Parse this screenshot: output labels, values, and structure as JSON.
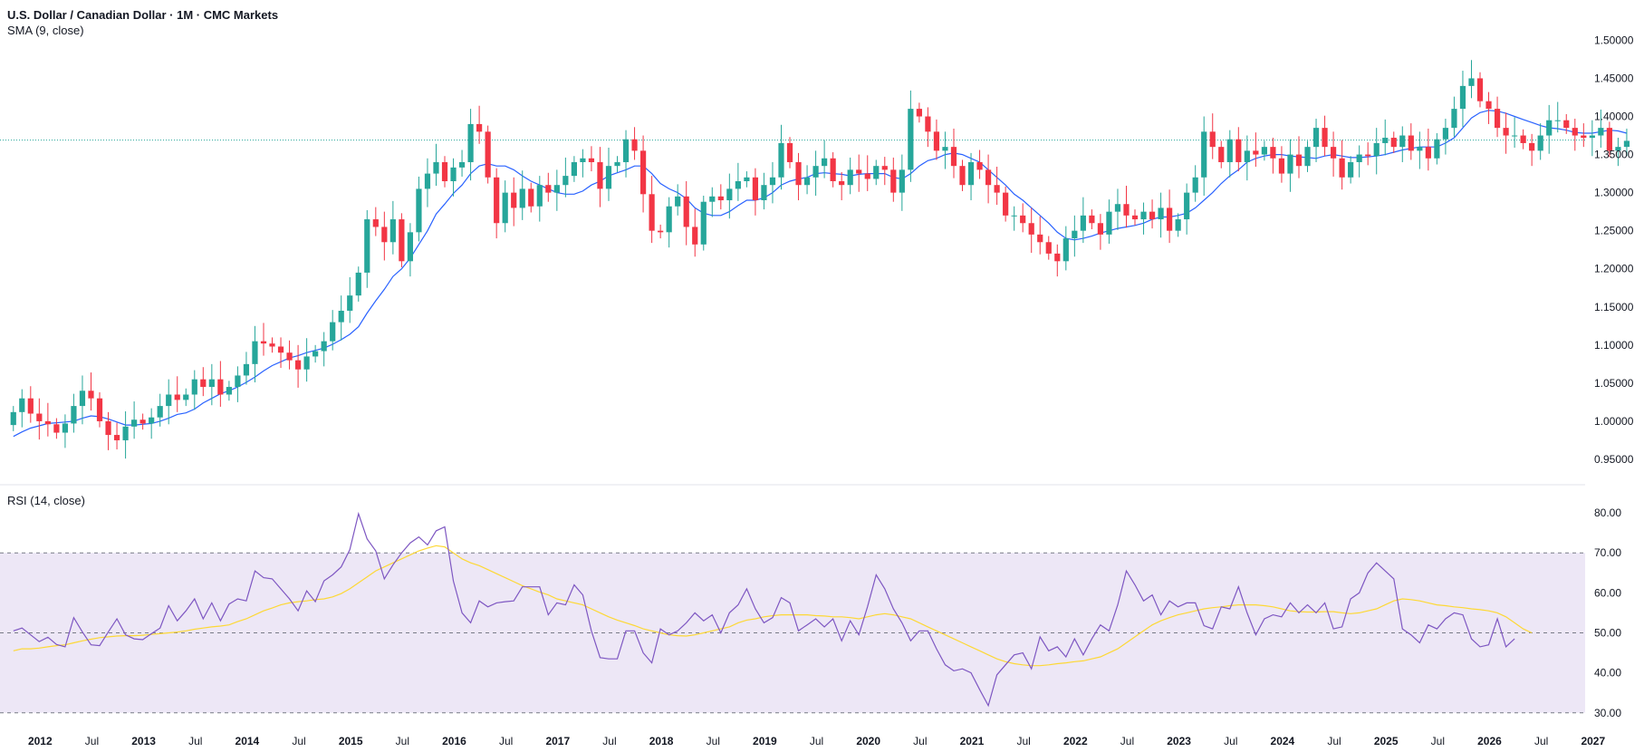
{
  "header": {
    "title": "U.S. Dollar / Canadian Dollar · 1M · CMC Markets",
    "sma_label": "SMA (9, close)",
    "rsi_label": "RSI (14, close)"
  },
  "colors": {
    "up": "#26a69a",
    "down": "#f23645",
    "sma": "#2962ff",
    "rsi": "#7e57c2",
    "rsi_ma": "#fdd835",
    "rsi_band": "#ede7f6",
    "price_line": "#26a69a"
  },
  "chart_data": [
    {
      "type": "candlestick",
      "title": "U.S. Dollar / Canadian Dollar · 1M · CMC Markets",
      "indicator": "SMA (9, close)",
      "y_ticks": [
        "1.50000",
        "1.45000",
        "1.40000",
        "1.35000",
        "1.30000",
        "1.25000",
        "1.20000",
        "1.15000",
        "1.10000",
        "1.05000",
        "1.00000",
        "0.95000"
      ],
      "ylim": [
        0.925,
        1.51
      ],
      "current_price": 1.369,
      "x_labels": [
        {
          "label": "2012",
          "x": 2012.0
        },
        {
          "label": "Jul",
          "x": 2012.5
        },
        {
          "label": "2013",
          "x": 2013.0
        },
        {
          "label": "Jul",
          "x": 2013.5
        },
        {
          "label": "2014",
          "x": 2014.0
        },
        {
          "label": "Jul",
          "x": 2014.5
        },
        {
          "label": "2015",
          "x": 2015.0
        },
        {
          "label": "Jul",
          "x": 2015.5
        },
        {
          "label": "2016",
          "x": 2016.0
        },
        {
          "label": "Jul",
          "x": 2016.5
        },
        {
          "label": "2017",
          "x": 2017.0
        },
        {
          "label": "Jul",
          "x": 2017.5
        },
        {
          "label": "2018",
          "x": 2018.0
        },
        {
          "label": "Jul",
          "x": 2018.5
        },
        {
          "label": "2019",
          "x": 2019.0
        },
        {
          "label": "Jul",
          "x": 2019.5
        },
        {
          "label": "2020",
          "x": 2020.0
        },
        {
          "label": "Jul",
          "x": 2020.5
        },
        {
          "label": "2021",
          "x": 2021.0
        },
        {
          "label": "Jul",
          "x": 2021.5
        },
        {
          "label": "2022",
          "x": 2022.0
        },
        {
          "label": "Jul",
          "x": 2022.5
        },
        {
          "label": "2023",
          "x": 2023.0
        },
        {
          "label": "Jul",
          "x": 2023.5
        },
        {
          "label": "2024",
          "x": 2024.0
        },
        {
          "label": "Jul",
          "x": 2024.5
        },
        {
          "label": "2025",
          "x": 2025.0
        },
        {
          "label": "Jul",
          "x": 2025.5
        },
        {
          "label": "2026",
          "x": 2026.0
        },
        {
          "label": "Jul",
          "x": 2026.5
        },
        {
          "label": "2027",
          "x": 2027.0
        }
      ],
      "close": [
        1.012,
        1.03,
        1.01,
        1.0,
        0.996,
        0.985,
        0.997,
        1.02,
        1.04,
        1.03,
        1.0,
        0.982,
        0.975,
        0.993,
        1.002,
        0.997,
        1.005,
        1.02,
        1.035,
        1.028,
        1.035,
        1.055,
        1.045,
        1.055,
        1.035,
        1.045,
        1.06,
        1.075,
        1.105,
        1.102,
        1.098,
        1.09,
        1.08,
        1.068,
        1.085,
        1.092,
        1.105,
        1.13,
        1.145,
        1.165,
        1.195,
        1.265,
        1.255,
        1.235,
        1.265,
        1.21,
        1.248,
        1.305,
        1.325,
        1.34,
        1.315,
        1.333,
        1.34,
        1.39,
        1.38,
        1.32,
        1.26,
        1.3,
        1.28,
        1.305,
        1.282,
        1.31,
        1.3,
        1.31,
        1.322,
        1.34,
        1.345,
        1.34,
        1.305,
        1.335,
        1.34,
        1.37,
        1.355,
        1.298,
        1.25,
        1.248,
        1.282,
        1.295,
        1.255,
        1.232,
        1.288,
        1.295,
        1.29,
        1.305,
        1.315,
        1.32,
        1.29,
        1.31,
        1.32,
        1.365,
        1.34,
        1.31,
        1.32,
        1.335,
        1.345,
        1.315,
        1.31,
        1.33,
        1.325,
        1.318,
        1.335,
        1.33,
        1.3,
        1.33,
        1.41,
        1.4,
        1.38,
        1.355,
        1.36,
        1.335,
        1.31,
        1.34,
        1.33,
        1.31,
        1.3,
        1.27,
        1.27,
        1.26,
        1.245,
        1.235,
        1.22,
        1.21,
        1.24,
        1.25,
        1.27,
        1.26,
        1.245,
        1.275,
        1.285,
        1.27,
        1.265,
        1.275,
        1.265,
        1.28,
        1.25,
        1.265,
        1.3,
        1.32,
        1.38,
        1.36,
        1.34,
        1.37,
        1.34,
        1.355,
        1.35,
        1.36,
        1.345,
        1.325,
        1.35,
        1.335,
        1.36,
        1.385,
        1.36,
        1.345,
        1.32,
        1.34,
        1.35,
        1.348,
        1.365,
        1.372,
        1.36,
        1.375,
        1.355,
        1.36,
        1.345,
        1.37,
        1.385,
        1.41,
        1.44,
        1.45,
        1.42,
        1.41,
        1.385,
        1.375,
        1.375,
        1.365,
        1.355,
        1.375,
        1.395,
        1.395,
        1.385,
        1.375,
        1.372,
        1.375,
        1.385,
        1.355,
        1.36,
        1.368
      ],
      "open": [
        0.995,
        1.012,
        1.03,
        1.01,
        1.0,
        0.996,
        0.985,
        0.997,
        1.02,
        1.04,
        1.03,
        1.0,
        0.982,
        0.975,
        0.993,
        1.002,
        0.997,
        1.005,
        1.02,
        1.035,
        1.028,
        1.035,
        1.055,
        1.045,
        1.055,
        1.035,
        1.045,
        1.06,
        1.075,
        1.105,
        1.102,
        1.098,
        1.09,
        1.08,
        1.068,
        1.085,
        1.092,
        1.105,
        1.13,
        1.145,
        1.165,
        1.195,
        1.265,
        1.255,
        1.235,
        1.265,
        1.21,
        1.248,
        1.305,
        1.325,
        1.34,
        1.315,
        1.333,
        1.34,
        1.39,
        1.38,
        1.32,
        1.26,
        1.3,
        1.28,
        1.305,
        1.282,
        1.31,
        1.3,
        1.31,
        1.322,
        1.34,
        1.345,
        1.34,
        1.305,
        1.335,
        1.34,
        1.37,
        1.355,
        1.298,
        1.25,
        1.248,
        1.282,
        1.295,
        1.255,
        1.232,
        1.288,
        1.295,
        1.29,
        1.305,
        1.315,
        1.32,
        1.29,
        1.31,
        1.32,
        1.365,
        1.34,
        1.31,
        1.32,
        1.335,
        1.345,
        1.315,
        1.31,
        1.33,
        1.325,
        1.318,
        1.335,
        1.33,
        1.3,
        1.33,
        1.41,
        1.4,
        1.38,
        1.355,
        1.36,
        1.335,
        1.31,
        1.34,
        1.33,
        1.31,
        1.3,
        1.27,
        1.27,
        1.26,
        1.245,
        1.235,
        1.22,
        1.21,
        1.24,
        1.25,
        1.27,
        1.26,
        1.245,
        1.275,
        1.285,
        1.27,
        1.265,
        1.275,
        1.265,
        1.28,
        1.25,
        1.265,
        1.3,
        1.32,
        1.38,
        1.36,
        1.34,
        1.37,
        1.34,
        1.355,
        1.35,
        1.36,
        1.345,
        1.325,
        1.35,
        1.335,
        1.36,
        1.385,
        1.36,
        1.345,
        1.32,
        1.34,
        1.35,
        1.348,
        1.365,
        1.372,
        1.36,
        1.375,
        1.355,
        1.36,
        1.345,
        1.37,
        1.385,
        1.41,
        1.44,
        1.45,
        1.42,
        1.41,
        1.385,
        1.375,
        1.375,
        1.365,
        1.355,
        1.375,
        1.395,
        1.395,
        1.385,
        1.375,
        1.372,
        1.375,
        1.385,
        1.355,
        1.36
      ],
      "sma": [
        0.98,
        0.986,
        0.991,
        0.994,
        0.997,
        0.998,
        0.999,
        1.0,
        1.004,
        1.007,
        1.006,
        1.003,
        0.999,
        0.995,
        0.995,
        0.996,
        0.997,
        1.0,
        1.004,
        1.009,
        1.011,
        1.016,
        1.024,
        1.03,
        1.036,
        1.04,
        1.045,
        1.051,
        1.058,
        1.066,
        1.073,
        1.078,
        1.083,
        1.086,
        1.09,
        1.093,
        1.096,
        1.101,
        1.107,
        1.114,
        1.124,
        1.142,
        1.158,
        1.173,
        1.19,
        1.2,
        1.214,
        1.232,
        1.25,
        1.272,
        1.285,
        1.299,
        1.31,
        1.325,
        1.335,
        1.338,
        1.335,
        1.335,
        1.33,
        1.322,
        1.315,
        1.31,
        1.305,
        1.3,
        1.298,
        1.298,
        1.302,
        1.31,
        1.315,
        1.322,
        1.326,
        1.33,
        1.335,
        1.335,
        1.325,
        1.312,
        1.305,
        1.3,
        1.292,
        1.28,
        1.273,
        1.27,
        1.27,
        1.275,
        1.283,
        1.29,
        1.29,
        1.293,
        1.3,
        1.31,
        1.315,
        1.318,
        1.32,
        1.325,
        1.326,
        1.325,
        1.324,
        1.322,
        1.324,
        1.325,
        1.325,
        1.325,
        1.32,
        1.318,
        1.325,
        1.335,
        1.342,
        1.345,
        1.35,
        1.352,
        1.35,
        1.345,
        1.34,
        1.33,
        1.32,
        1.31,
        1.298,
        1.29,
        1.28,
        1.27,
        1.26,
        1.248,
        1.24,
        1.238,
        1.24,
        1.243,
        1.247,
        1.25,
        1.253,
        1.255,
        1.257,
        1.26,
        1.265,
        1.268,
        1.268,
        1.27,
        1.273,
        1.28,
        1.29,
        1.3,
        1.312,
        1.322,
        1.33,
        1.34,
        1.345,
        1.348,
        1.35,
        1.35,
        1.348,
        1.347,
        1.346,
        1.345,
        1.348,
        1.35,
        1.348,
        1.346,
        1.346,
        1.347,
        1.348,
        1.35,
        1.353,
        1.356,
        1.358,
        1.36,
        1.36,
        1.36,
        1.365,
        1.372,
        1.385,
        1.398,
        1.405,
        1.408,
        1.407,
        1.404,
        1.4,
        1.396,
        1.392,
        1.388,
        1.385,
        1.384,
        1.382,
        1.379,
        1.378,
        1.378,
        1.38,
        1.382,
        1.381,
        1.378
      ]
    },
    {
      "type": "line",
      "title": "RSI (14, close)",
      "y_ticks": [
        "80.00",
        "70.00",
        "60.00",
        "50.00",
        "40.00",
        "30.00"
      ],
      "ylim": [
        27,
        85
      ],
      "bands": [
        30,
        50,
        70
      ],
      "series": [
        {
          "values": [
            50.5,
            51.2,
            49.5,
            47.8,
            48.9,
            47.1,
            46.5,
            53.8,
            50.2,
            47.0,
            46.8,
            50.2,
            53.5,
            49.5,
            48.5,
            48.3,
            49.8,
            51.2,
            56.8,
            53.0,
            55.5,
            58.5,
            53.5,
            57.5,
            53.0,
            57.2,
            58.5,
            58.0,
            65.5,
            63.8,
            63.5,
            61.0,
            58.5,
            55.5,
            60.5,
            57.8,
            63.0,
            64.5,
            66.5,
            70.8,
            79.8,
            73.5,
            70.5,
            63.5,
            67.0,
            70.0,
            72.5,
            74.0,
            72.0,
            75.5,
            76.5,
            63.0,
            55.0,
            52.5,
            58.0,
            56.5,
            57.5,
            57.8,
            58.0,
            61.5,
            61.5,
            61.5,
            54.5,
            57.5,
            57.0,
            62.0,
            59.5,
            50.5,
            43.8,
            43.5,
            43.5,
            50.5,
            50.5,
            45.0,
            42.5,
            51.0,
            49.5,
            50.5,
            52.5,
            55.0,
            53.0,
            54.5,
            50.0,
            55.0,
            57.0,
            61.0,
            56.0,
            52.5,
            53.8,
            58.8,
            57.5,
            50.5,
            52.0,
            53.5,
            51.5,
            53.5,
            48.0,
            53.0,
            49.5,
            56.5,
            64.5,
            61.0,
            56.0,
            52.5,
            48.0,
            50.5,
            50.5,
            46.0,
            42.0,
            40.5,
            41.0,
            40.0,
            35.8,
            31.8,
            39.5,
            42.0,
            44.5,
            45.0,
            41.0,
            49.0,
            45.5,
            46.5,
            44.0,
            48.5,
            44.5,
            48.5,
            52.0,
            50.5,
            57.0,
            65.5,
            62.0,
            58.0,
            59.5,
            54.5,
            58.0,
            56.5,
            57.5,
            57.5,
            51.8,
            51.0,
            56.5,
            56.0,
            61.5,
            55.0,
            49.5,
            53.5,
            54.5,
            54.0,
            57.5,
            55.0,
            57.0,
            55.0,
            57.5,
            51.0,
            51.5,
            58.5,
            60.0,
            65.0,
            67.5,
            65.5,
            63.5,
            51.0,
            49.5,
            47.5,
            52.0,
            51.0,
            53.5,
            55.0,
            54.5,
            48.5,
            46.5,
            47.0,
            53.5,
            46.5,
            48.5
          ]
        },
        {
          "values": [
            45.5,
            46.0,
            46.0,
            46.2,
            46.5,
            46.8,
            47.0,
            47.5,
            48.0,
            48.4,
            48.8,
            49.0,
            49.2,
            49.3,
            49.3,
            49.4,
            49.6,
            49.8,
            50.0,
            50.2,
            50.5,
            50.9,
            51.2,
            51.5,
            51.7,
            52.0,
            52.8,
            53.5,
            54.5,
            55.5,
            56.2,
            57.0,
            57.5,
            57.8,
            58.0,
            58.3,
            58.5,
            59.0,
            59.8,
            61.0,
            62.5,
            64.0,
            65.5,
            66.5,
            67.5,
            68.5,
            69.5,
            70.5,
            71.2,
            71.8,
            71.5,
            70.0,
            68.5,
            67.5,
            66.8,
            65.8,
            64.8,
            63.8,
            62.8,
            61.8,
            61.0,
            60.2,
            59.5,
            58.5,
            58.0,
            57.5,
            57.0,
            56.0,
            55.0,
            54.0,
            53.2,
            52.5,
            51.8,
            51.0,
            50.5,
            50.0,
            49.5,
            49.3,
            49.2,
            49.5,
            50.0,
            50.5,
            51.0,
            51.5,
            52.5,
            53.2,
            53.5,
            54.0,
            54.3,
            54.5,
            54.5,
            54.5,
            54.5,
            54.3,
            54.2,
            54.0,
            54.0,
            53.8,
            53.5,
            54.0,
            54.5,
            54.8,
            54.5,
            54.0,
            53.5,
            52.5,
            51.5,
            50.5,
            49.5,
            48.5,
            47.5,
            46.5,
            45.5,
            44.5,
            43.5,
            42.8,
            42.3,
            42.0,
            41.8,
            41.8,
            42.0,
            42.3,
            42.5,
            42.8,
            43.0,
            43.5,
            44.0,
            45.0,
            46.0,
            47.5,
            49.0,
            50.5,
            52.0,
            53.0,
            53.8,
            54.5,
            55.0,
            55.5,
            56.0,
            56.3,
            56.5,
            56.8,
            57.0,
            57.0,
            57.0,
            56.8,
            56.5,
            56.0,
            55.5,
            55.3,
            55.2,
            55.2,
            55.3,
            55.3,
            55.0,
            54.8,
            55.0,
            55.5,
            56.0,
            57.0,
            58.0,
            58.5,
            58.3,
            58.0,
            57.5,
            57.0,
            56.8,
            56.5,
            56.3,
            56.0,
            55.8,
            55.5,
            55.0,
            54.0,
            52.5,
            51.0,
            50.0
          ]
        }
      ]
    }
  ]
}
